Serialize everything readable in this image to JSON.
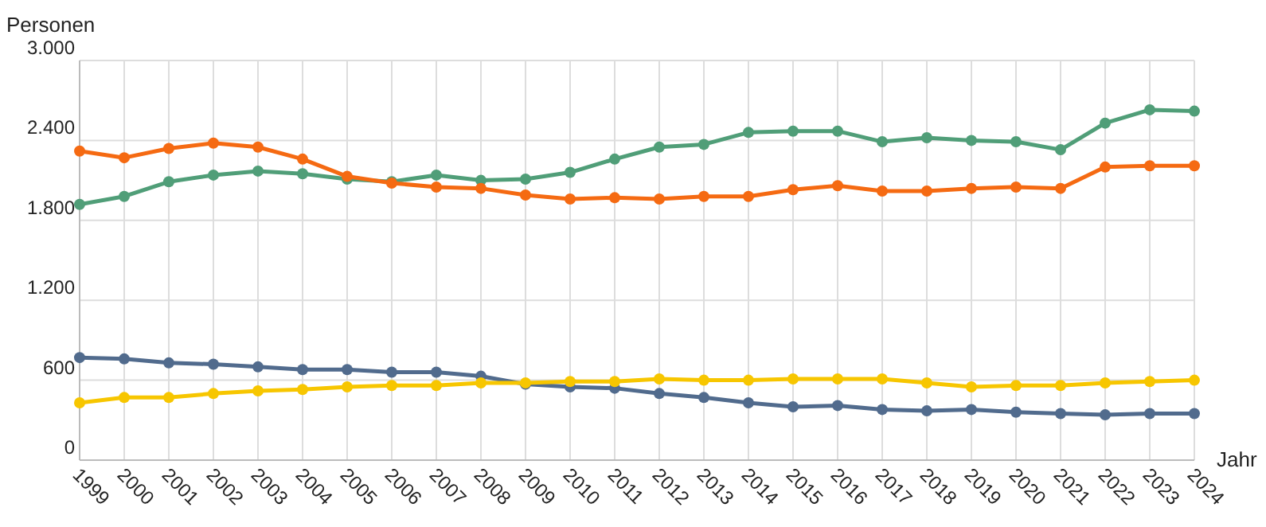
{
  "chart_data": {
    "type": "line",
    "ylabel": "Personen",
    "xlabel": "Jahr",
    "categories": [
      "1999",
      "2000",
      "2001",
      "2002",
      "2003",
      "2004",
      "2005",
      "2006",
      "2007",
      "2008",
      "2009",
      "2010",
      "2011",
      "2012",
      "2013",
      "2014",
      "2015",
      "2016",
      "2017",
      "2018",
      "2019",
      "2020",
      "2021",
      "2022",
      "2023",
      "2024"
    ],
    "ylim": [
      0,
      3000
    ],
    "yticks": [
      {
        "value": 0,
        "label": "0"
      },
      {
        "value": 600,
        "label": "600"
      },
      {
        "value": 1200,
        "label": "1.200"
      },
      {
        "value": 1800,
        "label": "1.800"
      },
      {
        "value": 2400,
        "label": "2.400"
      },
      {
        "value": 3000,
        "label": "3.000"
      }
    ],
    "grid": true,
    "marker": "circle",
    "line_style": "solid",
    "series": [
      {
        "color": "#509e78",
        "values": [
          1920,
          1980,
          2090,
          2140,
          2170,
          2150,
          2110,
          2090,
          2140,
          2100,
          2110,
          2160,
          2260,
          2350,
          2370,
          2460,
          2470,
          2470,
          2390,
          2420,
          2400,
          2390,
          2330,
          2530,
          2630,
          2620
        ]
      },
      {
        "color": "#f56a12",
        "values": [
          2320,
          2270,
          2340,
          2380,
          2350,
          2260,
          2130,
          2080,
          2050,
          2040,
          1990,
          1960,
          1970,
          1960,
          1980,
          1980,
          2030,
          2060,
          2020,
          2020,
          2040,
          2050,
          2040,
          2200,
          2210,
          2210
        ]
      },
      {
        "color": "#516b8d",
        "values": [
          770,
          760,
          730,
          720,
          700,
          680,
          680,
          660,
          660,
          630,
          570,
          550,
          540,
          500,
          470,
          430,
          400,
          410,
          380,
          370,
          380,
          360,
          350,
          340,
          350,
          350
        ]
      },
      {
        "color": "#f7c600",
        "values": [
          430,
          470,
          470,
          500,
          520,
          530,
          550,
          560,
          560,
          580,
          580,
          590,
          590,
          610,
          600,
          600,
          610,
          610,
          610,
          580,
          550,
          560,
          560,
          580,
          590,
          600
        ]
      }
    ]
  }
}
